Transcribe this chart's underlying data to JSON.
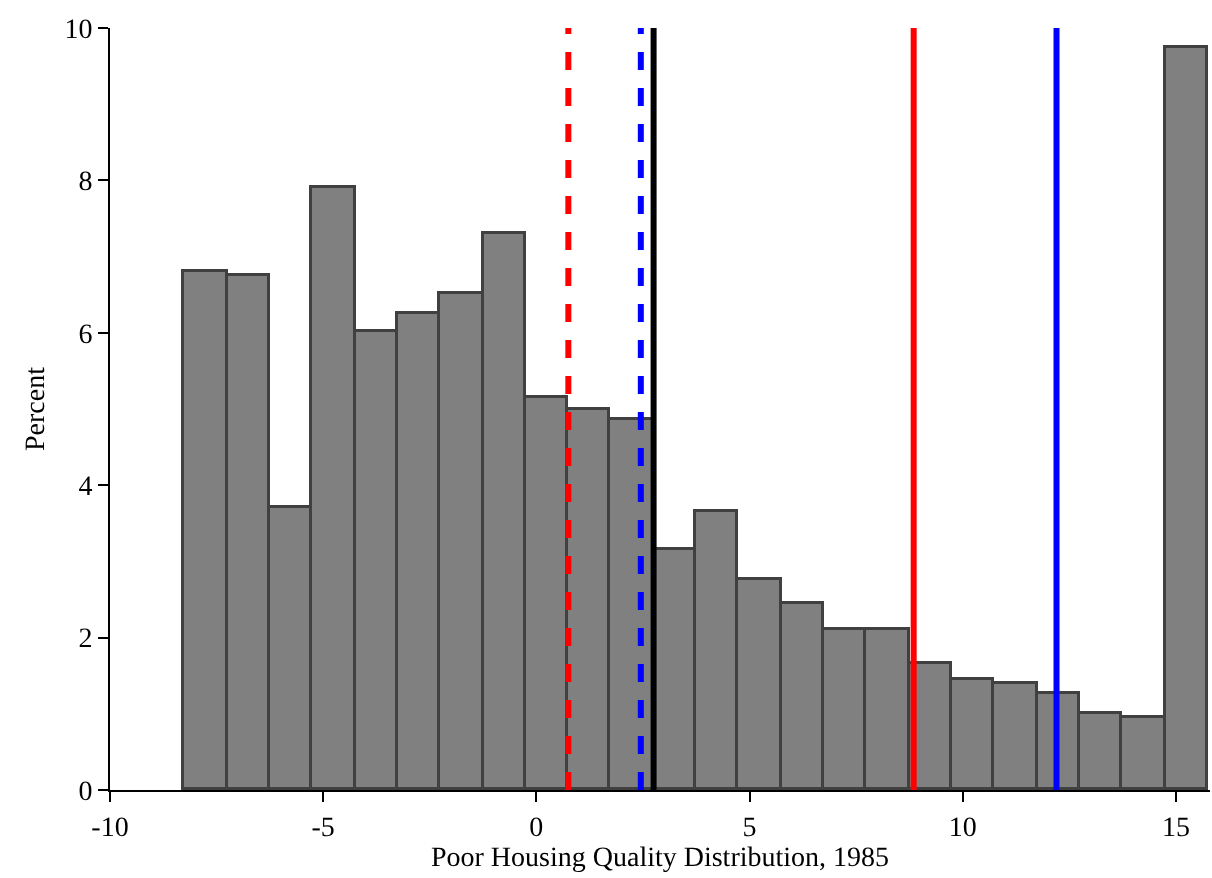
{
  "chart_data": {
    "type": "histogram",
    "xlabel": "Poor Housing Quality Distribution, 1985",
    "ylabel": "Percent",
    "bins": [
      -8.25,
      -7.25,
      -6.25,
      -5.25,
      -4.25,
      -3.25,
      -2.25,
      -1.25,
      -0.25,
      0.75,
      1.75,
      2.75,
      3.75,
      4.75,
      5.75,
      6.75,
      7.75,
      8.75,
      9.75,
      10.75,
      11.75,
      12.75,
      13.75,
      14.75,
      15.75
    ],
    "values": [
      6.8,
      6.75,
      3.7,
      7.9,
      6.0,
      6.25,
      6.5,
      7.3,
      5.15,
      5.0,
      4.85,
      3.15,
      3.65,
      2.75,
      2.45,
      2.1,
      2.1,
      1.65,
      1.45,
      1.4,
      1.25,
      1.0,
      0.95,
      9.75
    ],
    "color": "#808080",
    "xlim": [
      -10,
      15.8
    ],
    "xticks": [
      -10,
      -5,
      0,
      5,
      10,
      15
    ],
    "ylim": [
      0,
      10
    ],
    "yticks": [
      0,
      2,
      4,
      6,
      8,
      10
    ],
    "grid": false,
    "ref_lines": [
      {
        "axis": "x",
        "value": 0.75,
        "color": "#ff0000",
        "line_style": "dashed"
      },
      {
        "axis": "x",
        "value": 2.45,
        "color": "#0000ff",
        "line_style": "dashed"
      },
      {
        "axis": "x",
        "value": 2.75,
        "color": "#000000",
        "line_style": "solid"
      },
      {
        "axis": "x",
        "value": 8.85,
        "color": "#ff0000",
        "line_style": "solid"
      },
      {
        "axis": "x",
        "value": 12.2,
        "color": "#0000ff",
        "line_style": "solid"
      }
    ]
  }
}
